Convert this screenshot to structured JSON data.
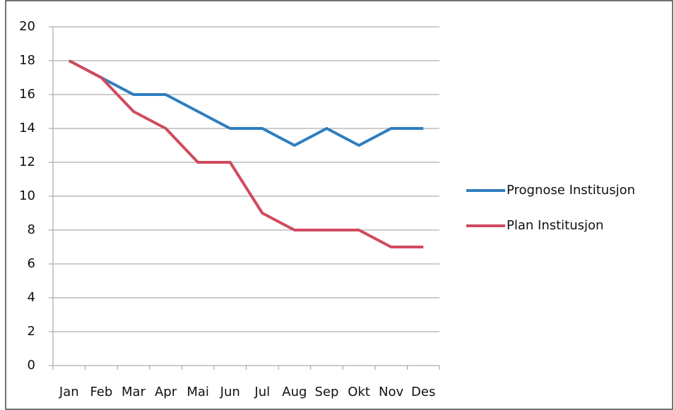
{
  "chart_data": {
    "type": "line",
    "categories": [
      "Jan",
      "Feb",
      "Mar",
      "Apr",
      "Mai",
      "Jun",
      "Jul",
      "Aug",
      "Sep",
      "Okt",
      "Nov",
      "Des"
    ],
    "series": [
      {
        "name": "Prognose Institusjon",
        "color": "#2f7ebf",
        "values": [
          18,
          17,
          16,
          16,
          15,
          14,
          14,
          13,
          14,
          13,
          14,
          14
        ]
      },
      {
        "name": "Plan Institusjon",
        "color": "#d04a5e",
        "values": [
          18,
          17,
          15,
          14,
          12,
          12,
          9,
          8,
          8,
          8,
          7,
          7
        ]
      }
    ],
    "ylim": [
      0,
      20
    ],
    "yticks": [
      0,
      2,
      4,
      6,
      8,
      10,
      12,
      14,
      16,
      18,
      20
    ],
    "grid": true,
    "legend": "right"
  }
}
